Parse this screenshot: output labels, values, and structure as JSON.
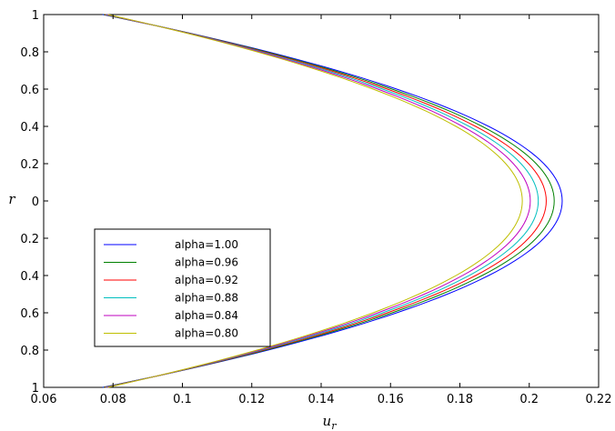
{
  "chart_data": {
    "type": "line",
    "title": "",
    "xlabel": "u",
    "xlabel_subscript": "r",
    "ylabel": "r",
    "xlim": [
      0.06,
      0.22
    ],
    "ylim": [
      -1,
      1
    ],
    "xticks": [
      0.06,
      0.08,
      0.1,
      0.12,
      0.14,
      0.16,
      0.18,
      0.2,
      0.22
    ],
    "xtick_labels": [
      "0.06",
      "0.08",
      "0.1",
      "0.12",
      "0.14",
      "0.16",
      "0.18",
      "0.2",
      "0.22"
    ],
    "yticks": [
      1,
      0.8,
      0.6,
      0.4,
      0.2,
      0,
      -0.2,
      -0.4,
      -0.6,
      -0.8,
      -1
    ],
    "ytick_labels": [
      "1",
      "0.8",
      "0.6",
      "0.4",
      "0.2",
      "0",
      "0.2",
      "0.4",
      "0.6",
      "0.8",
      "1"
    ],
    "grid": false,
    "legend_position": "lower-left",
    "series": [
      {
        "name": "alpha=1.00",
        "color": "#0000ff",
        "x_wall": 0.077,
        "x_center": 0.2095
      },
      {
        "name": "alpha=0.96",
        "color": "#008000",
        "x_wall": 0.0773,
        "x_center": 0.2072
      },
      {
        "name": "alpha=0.92",
        "color": "#ff0000",
        "x_wall": 0.0776,
        "x_center": 0.2049
      },
      {
        "name": "alpha=0.88",
        "color": "#00bfbf",
        "x_wall": 0.0779,
        "x_center": 0.2026
      },
      {
        "name": "alpha=0.84",
        "color": "#bf00bf",
        "x_wall": 0.0782,
        "x_center": 0.2003
      },
      {
        "name": "alpha=0.80",
        "color": "#bfbf00",
        "x_wall": 0.0785,
        "x_center": 0.198
      }
    ]
  }
}
